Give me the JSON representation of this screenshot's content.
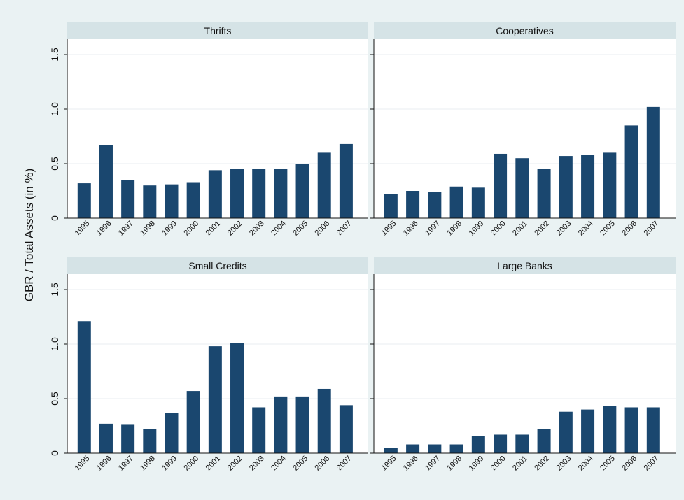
{
  "colors": {
    "bar": "#1a476f",
    "strip": "#d5e3e6",
    "background": "#eaf2f3"
  },
  "chart_data": {
    "type": "bar",
    "ylabel": "GBR / Total Assets (in %)",
    "ylim": [
      0,
      1.6
    ],
    "yticks": [
      "0",
      "0.5",
      "1.0",
      "1.5"
    ],
    "ytick_values": [
      0,
      0.5,
      1.0,
      1.5
    ],
    "grid": true,
    "categories": [
      "1995",
      "1996",
      "1997",
      "1998",
      "1999",
      "2000",
      "2001",
      "2002",
      "2003",
      "2004",
      "2005",
      "2006",
      "2007"
    ],
    "panels": [
      {
        "name": "Thrifts",
        "values": [
          0.32,
          0.67,
          0.35,
          0.3,
          0.31,
          0.33,
          0.44,
          0.45,
          0.45,
          0.45,
          0.5,
          0.6,
          0.68
        ]
      },
      {
        "name": "Cooperatives",
        "values": [
          0.22,
          0.25,
          0.24,
          0.29,
          0.28,
          0.59,
          0.55,
          0.45,
          0.57,
          0.58,
          0.6,
          0.85,
          1.02
        ]
      },
      {
        "name": "Small Credits",
        "values": [
          1.21,
          0.27,
          0.26,
          0.22,
          0.37,
          0.57,
          0.98,
          1.01,
          0.42,
          0.52,
          0.52,
          0.59,
          0.44
        ]
      },
      {
        "name": "Large Banks",
        "values": [
          0.05,
          0.08,
          0.08,
          0.08,
          0.16,
          0.17,
          0.17,
          0.22,
          0.38,
          0.4,
          0.43,
          0.42,
          0.42
        ]
      }
    ]
  }
}
